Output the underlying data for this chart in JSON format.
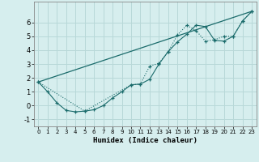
{
  "title": "",
  "xlabel": "Humidex (Indice chaleur)",
  "background_color": "#d6eeee",
  "grid_color": "#b8d8d8",
  "line_color": "#1a6b6b",
  "xlim": [
    -0.5,
    23.5
  ],
  "ylim": [
    -1.5,
    7.5
  ],
  "xticks": [
    0,
    1,
    2,
    3,
    4,
    5,
    6,
    7,
    8,
    9,
    10,
    11,
    12,
    13,
    14,
    15,
    16,
    17,
    18,
    19,
    20,
    21,
    22,
    23
  ],
  "yticks": [
    -1,
    0,
    1,
    2,
    3,
    4,
    5,
    6
  ],
  "line1_x": [
    0,
    1,
    2,
    3,
    4,
    5,
    6,
    7,
    8,
    9,
    10,
    11,
    12,
    13,
    14,
    15,
    16,
    17,
    18,
    19,
    20,
    21,
    22,
    23
  ],
  "line1_y": [
    1.7,
    1.0,
    0.2,
    -0.35,
    -0.45,
    -0.4,
    -0.3,
    0.0,
    0.55,
    1.0,
    1.5,
    1.55,
    1.9,
    3.0,
    3.9,
    4.6,
    5.15,
    5.8,
    5.7,
    4.7,
    4.65,
    5.0,
    6.1,
    6.8
  ],
  "line2_x": [
    0,
    5,
    10,
    11,
    12,
    13,
    14,
    15,
    16,
    17,
    18,
    19,
    20,
    21,
    22,
    23
  ],
  "line2_y": [
    1.7,
    -0.4,
    1.5,
    1.55,
    2.85,
    3.05,
    3.9,
    5.1,
    5.8,
    5.4,
    4.65,
    4.75,
    5.0,
    5.0,
    6.1,
    6.8
  ],
  "line3_x": [
    0,
    23
  ],
  "line3_y": [
    1.7,
    6.8
  ]
}
